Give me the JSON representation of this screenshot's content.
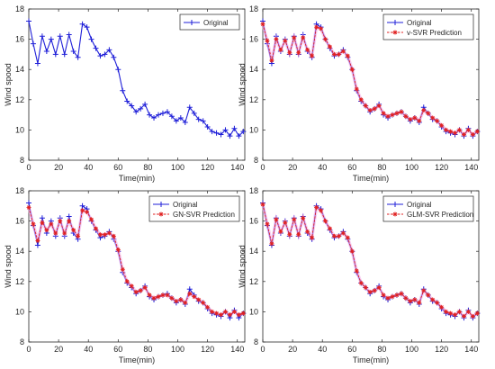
{
  "chart_data": [
    {
      "type": "line",
      "title": "",
      "xlabel": "Time(min)",
      "ylabel": "Wind spood",
      "xlim": [
        0,
        145
      ],
      "ylim": [
        8,
        18
      ],
      "xticks": [
        "0",
        "20",
        "40",
        "60",
        "80",
        "100",
        "120",
        "140"
      ],
      "yticks": [
        "8",
        "10",
        "12",
        "14",
        "16",
        "18"
      ],
      "legend_position": "top-right",
      "series": [
        {
          "name": "Original",
          "color": "#1f1fd8",
          "marker": "plus",
          "x": [
            0,
            3,
            6,
            9,
            12,
            15,
            18,
            21,
            24,
            27,
            30,
            33,
            36,
            39,
            42,
            45,
            48,
            51,
            54,
            57,
            60,
            63,
            66,
            69,
            72,
            75,
            78,
            81,
            84,
            87,
            90,
            93,
            96,
            99,
            102,
            105,
            108,
            111,
            114,
            117,
            120,
            123,
            126,
            129,
            132,
            135,
            138,
            141,
            144
          ],
          "values": [
            17.2,
            15.7,
            14.4,
            16.2,
            15.2,
            16.0,
            15.0,
            16.2,
            15.0,
            16.3,
            15.2,
            14.8,
            17.0,
            16.8,
            16.0,
            15.4,
            14.9,
            15.0,
            15.3,
            14.8,
            14.0,
            12.6,
            11.9,
            11.6,
            11.2,
            11.4,
            11.7,
            11.0,
            10.8,
            11.0,
            11.1,
            11.2,
            10.9,
            10.6,
            10.8,
            10.5,
            11.5,
            11.1,
            10.7,
            10.6,
            10.2,
            9.9,
            9.8,
            9.7,
            10.0,
            9.6,
            10.1,
            9.6,
            9.9
          ]
        }
      ]
    },
    {
      "type": "line",
      "title": "",
      "xlabel": "Time(min)",
      "ylabel": "Wind spood",
      "xlim": [
        0,
        145
      ],
      "ylim": [
        8,
        18
      ],
      "xticks": [
        "0",
        "20",
        "40",
        "60",
        "80",
        "100",
        "120",
        "140"
      ],
      "yticks": [
        "8",
        "10",
        "12",
        "14",
        "16",
        "18"
      ],
      "legend_position": "top-right",
      "series": [
        {
          "name": "Original",
          "color": "#1f1fd8",
          "marker": "plus",
          "x": [
            0,
            3,
            6,
            9,
            12,
            15,
            18,
            21,
            24,
            27,
            30,
            33,
            36,
            39,
            42,
            45,
            48,
            51,
            54,
            57,
            60,
            63,
            66,
            69,
            72,
            75,
            78,
            81,
            84,
            87,
            90,
            93,
            96,
            99,
            102,
            105,
            108,
            111,
            114,
            117,
            120,
            123,
            126,
            129,
            132,
            135,
            138,
            141,
            144
          ],
          "values": [
            17.2,
            15.7,
            14.4,
            16.2,
            15.2,
            16.0,
            15.0,
            16.2,
            15.0,
            16.3,
            15.2,
            14.8,
            17.0,
            16.8,
            16.0,
            15.4,
            14.9,
            15.0,
            15.3,
            14.8,
            14.0,
            12.6,
            11.9,
            11.6,
            11.2,
            11.4,
            11.7,
            11.0,
            10.8,
            11.0,
            11.1,
            11.2,
            10.9,
            10.6,
            10.8,
            10.5,
            11.5,
            11.1,
            10.7,
            10.6,
            10.2,
            9.9,
            9.8,
            9.7,
            10.0,
            9.6,
            10.1,
            9.6,
            9.9
          ]
        },
        {
          "name": "v-SVR Prediction",
          "color": "#e02020",
          "marker": "star",
          "x": [
            0,
            3,
            6,
            9,
            12,
            15,
            18,
            21,
            24,
            27,
            30,
            33,
            36,
            39,
            42,
            45,
            48,
            51,
            54,
            57,
            60,
            63,
            66,
            69,
            72,
            75,
            78,
            81,
            84,
            87,
            90,
            93,
            96,
            99,
            102,
            105,
            108,
            111,
            114,
            117,
            120,
            123,
            126,
            129,
            132,
            135,
            138,
            141,
            144
          ],
          "values": [
            17.0,
            15.9,
            14.6,
            16.0,
            15.3,
            15.9,
            15.1,
            16.1,
            15.1,
            16.1,
            15.3,
            14.9,
            16.8,
            16.7,
            16.0,
            15.5,
            15.0,
            15.0,
            15.2,
            14.9,
            14.0,
            12.7,
            12.0,
            11.6,
            11.3,
            11.4,
            11.6,
            11.1,
            10.9,
            11.0,
            11.1,
            11.2,
            10.9,
            10.7,
            10.8,
            10.6,
            11.3,
            11.1,
            10.8,
            10.6,
            10.3,
            10.0,
            9.9,
            9.8,
            10.0,
            9.7,
            10.0,
            9.7,
            9.9
          ]
        }
      ]
    },
    {
      "type": "line",
      "title": "",
      "xlabel": "Time(min)",
      "ylabel": "Wind spood",
      "xlim": [
        0,
        145
      ],
      "ylim": [
        8,
        18
      ],
      "xticks": [
        "0",
        "20",
        "40",
        "60",
        "80",
        "100",
        "120",
        "140"
      ],
      "yticks": [
        "8",
        "10",
        "12",
        "14",
        "16",
        "18"
      ],
      "legend_position": "top-right",
      "series": [
        {
          "name": "Original",
          "color": "#1f1fd8",
          "marker": "plus",
          "x": [
            0,
            3,
            6,
            9,
            12,
            15,
            18,
            21,
            24,
            27,
            30,
            33,
            36,
            39,
            42,
            45,
            48,
            51,
            54,
            57,
            60,
            63,
            66,
            69,
            72,
            75,
            78,
            81,
            84,
            87,
            90,
            93,
            96,
            99,
            102,
            105,
            108,
            111,
            114,
            117,
            120,
            123,
            126,
            129,
            132,
            135,
            138,
            141,
            144
          ],
          "values": [
            17.2,
            15.7,
            14.4,
            16.2,
            15.2,
            16.0,
            15.0,
            16.2,
            15.0,
            16.3,
            15.2,
            14.8,
            17.0,
            16.8,
            16.0,
            15.4,
            14.9,
            15.0,
            15.3,
            14.8,
            14.0,
            12.6,
            11.9,
            11.6,
            11.2,
            11.4,
            11.7,
            11.0,
            10.8,
            11.0,
            11.1,
            11.2,
            10.9,
            10.6,
            10.8,
            10.5,
            11.5,
            11.1,
            10.7,
            10.6,
            10.2,
            9.9,
            9.8,
            9.7,
            10.0,
            9.6,
            10.1,
            9.6,
            9.9
          ]
        },
        {
          "name": "GN-SVR Prediction",
          "color": "#e02020",
          "marker": "star",
          "x": [
            0,
            3,
            6,
            9,
            12,
            15,
            18,
            21,
            24,
            27,
            30,
            33,
            36,
            39,
            42,
            45,
            48,
            51,
            54,
            57,
            60,
            63,
            66,
            69,
            72,
            75,
            78,
            81,
            84,
            87,
            90,
            93,
            96,
            99,
            102,
            105,
            108,
            111,
            114,
            117,
            120,
            123,
            126,
            129,
            132,
            135,
            138,
            141,
            144
          ],
          "values": [
            16.9,
            15.8,
            14.7,
            15.9,
            15.4,
            15.8,
            15.2,
            16.0,
            15.2,
            16.0,
            15.4,
            15.0,
            16.7,
            16.6,
            16.1,
            15.5,
            15.1,
            15.1,
            15.2,
            15.0,
            14.1,
            12.8,
            12.0,
            11.7,
            11.3,
            11.4,
            11.6,
            11.1,
            10.9,
            11.0,
            11.1,
            11.1,
            10.9,
            10.7,
            10.8,
            10.6,
            11.2,
            11.0,
            10.8,
            10.6,
            10.3,
            10.0,
            9.9,
            9.8,
            10.0,
            9.8,
            10.0,
            9.8,
            9.9
          ]
        }
      ]
    },
    {
      "type": "line",
      "title": "",
      "xlabel": "Time(min)",
      "ylabel": "Wind spood",
      "xlim": [
        0,
        145
      ],
      "ylim": [
        8,
        18
      ],
      "xticks": [
        "0",
        "20",
        "40",
        "60",
        "80",
        "100",
        "120",
        "140"
      ],
      "yticks": [
        "8",
        "10",
        "12",
        "14",
        "16",
        "18"
      ],
      "legend_position": "top-right",
      "series": [
        {
          "name": "Original",
          "color": "#1f1fd8",
          "marker": "plus",
          "x": [
            0,
            3,
            6,
            9,
            12,
            15,
            18,
            21,
            24,
            27,
            30,
            33,
            36,
            39,
            42,
            45,
            48,
            51,
            54,
            57,
            60,
            63,
            66,
            69,
            72,
            75,
            78,
            81,
            84,
            87,
            90,
            93,
            96,
            99,
            102,
            105,
            108,
            111,
            114,
            117,
            120,
            123,
            126,
            129,
            132,
            135,
            138,
            141,
            144
          ],
          "values": [
            17.2,
            15.7,
            14.4,
            16.2,
            15.2,
            16.0,
            15.0,
            16.2,
            15.0,
            16.3,
            15.2,
            14.8,
            17.0,
            16.8,
            16.0,
            15.4,
            14.9,
            15.0,
            15.3,
            14.8,
            14.0,
            12.6,
            11.9,
            11.6,
            11.2,
            11.4,
            11.7,
            11.0,
            10.8,
            11.0,
            11.1,
            11.2,
            10.9,
            10.6,
            10.8,
            10.5,
            11.5,
            11.1,
            10.7,
            10.6,
            10.2,
            9.9,
            9.8,
            9.7,
            10.0,
            9.6,
            10.1,
            9.6,
            9.9
          ]
        },
        {
          "name": "GLM-SVR Prediction",
          "color": "#e02020",
          "marker": "star",
          "x": [
            0,
            3,
            6,
            9,
            12,
            15,
            18,
            21,
            24,
            27,
            30,
            33,
            36,
            39,
            42,
            45,
            48,
            51,
            54,
            57,
            60,
            63,
            66,
            69,
            72,
            75,
            78,
            81,
            84,
            87,
            90,
            93,
            96,
            99,
            102,
            105,
            108,
            111,
            114,
            117,
            120,
            123,
            126,
            129,
            132,
            135,
            138,
            141,
            144
          ],
          "values": [
            17.1,
            15.8,
            14.5,
            16.1,
            15.3,
            15.9,
            15.1,
            16.1,
            15.1,
            16.2,
            15.3,
            14.9,
            16.9,
            16.7,
            16.0,
            15.5,
            15.0,
            15.0,
            15.2,
            14.9,
            14.0,
            12.7,
            11.9,
            11.6,
            11.3,
            11.4,
            11.6,
            11.1,
            10.9,
            11.0,
            11.1,
            11.2,
            10.9,
            10.7,
            10.8,
            10.6,
            11.4,
            11.1,
            10.8,
            10.6,
            10.3,
            10.0,
            9.9,
            9.8,
            10.0,
            9.7,
            10.0,
            9.7,
            9.9
          ]
        }
      ]
    }
  ]
}
